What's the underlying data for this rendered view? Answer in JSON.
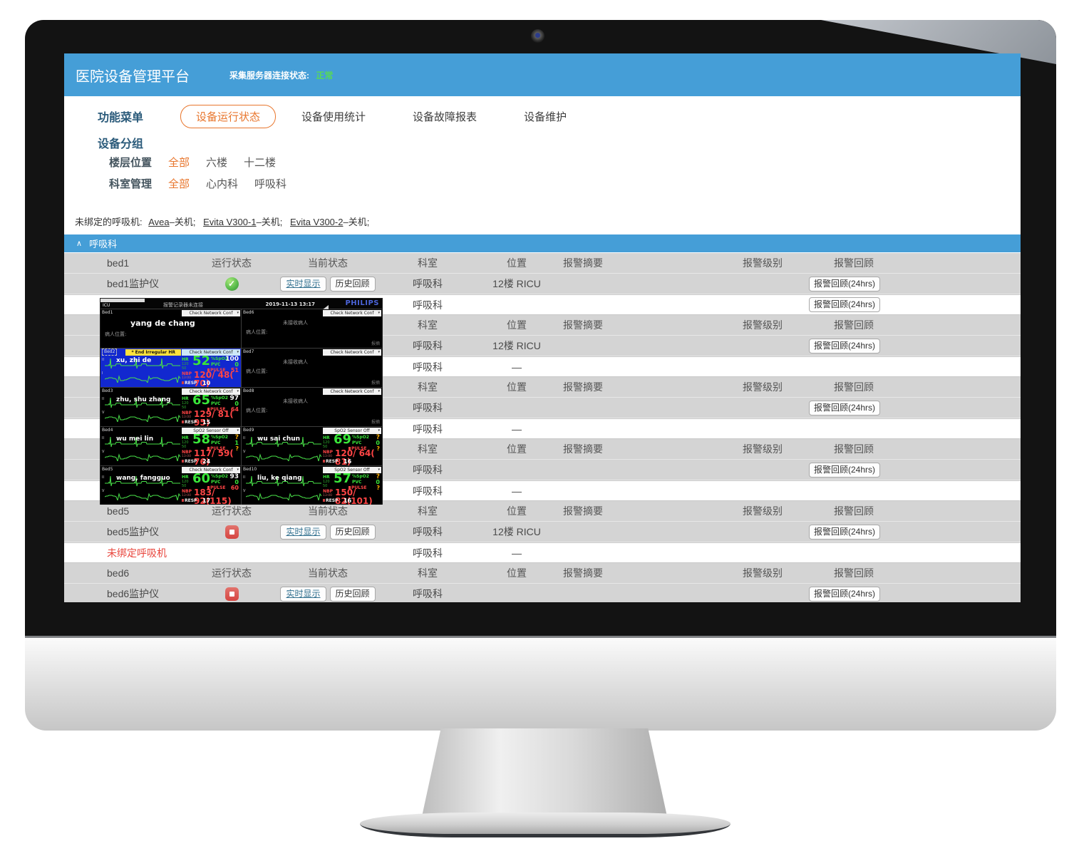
{
  "app": {
    "title": "医院设备管理平台",
    "server_status_label": "采集服务器连接状态:",
    "server_status_value": "正常",
    "nav": {
      "menu_label": "功能菜单",
      "tabs": [
        {
          "label": "设备运行状态",
          "active": true
        },
        {
          "label": "设备使用统计",
          "active": false
        },
        {
          "label": "设备故障报表",
          "active": false
        },
        {
          "label": "设备维护",
          "active": false
        }
      ]
    },
    "filters": {
      "group_title": "设备分组",
      "floor": {
        "label": "楼层位置",
        "options": [
          "全部",
          "六楼",
          "十二楼"
        ],
        "selected": "全部"
      },
      "dept": {
        "label": "科室管理",
        "options": [
          "全部",
          "心内科",
          "呼吸科"
        ],
        "selected": "全部"
      }
    },
    "unbound": {
      "prefix": "未绑定的呼吸机:",
      "items": [
        {
          "name": "Avea",
          "state": "–关机;"
        },
        {
          "name": "Evita V300-1",
          "state": "–关机;"
        },
        {
          "name": "Evita V300-2",
          "state": "–关机;"
        }
      ]
    },
    "section": {
      "caret": "∧",
      "title": "呼吸科"
    },
    "table": {
      "header_cols": {
        "run": "运行状态",
        "current": "当前状态",
        "dept": "科室",
        "loc": "位置",
        "summary": "报警摘要",
        "level": "报警级别",
        "review": "报警回顾"
      },
      "buttons": {
        "realtime": "实时显示",
        "history": "历史回顾",
        "review24": "报警回顾(24hrs)"
      },
      "groups": [
        {
          "bed": "bed1",
          "device": {
            "name": "bed1监护仪",
            "status": "running",
            "dept": "呼吸科",
            "loc": "12楼 RICU",
            "controls": true,
            "review": true
          },
          "third": {
            "name": "",
            "red": false,
            "dept": "呼吸科",
            "loc": "",
            "review": true
          }
        },
        {
          "bed": "",
          "device": {
            "name": "",
            "status": "",
            "dept": "呼吸科",
            "loc": "12楼 RICU",
            "controls": false,
            "review": true
          },
          "third": {
            "name": "",
            "red": false,
            "dept": "呼吸科",
            "loc": "—",
            "review": false
          }
        },
        {
          "bed": "",
          "device": {
            "name": "",
            "status": "",
            "dept": "呼吸科",
            "loc": "",
            "controls": false,
            "review": true
          },
          "third": {
            "name": "",
            "red": false,
            "dept": "呼吸科",
            "loc": "—",
            "review": false
          }
        },
        {
          "bed": "",
          "device": {
            "name": "",
            "status": "",
            "dept": "呼吸科",
            "loc": "",
            "controls": false,
            "review": true
          },
          "third": {
            "name": "",
            "red": false,
            "dept": "呼吸科",
            "loc": "—",
            "review": false
          }
        },
        {
          "bed": "bed5",
          "device": {
            "name": "bed5监护仪",
            "status": "stopped",
            "dept": "呼吸科",
            "loc": "12楼 RICU",
            "controls": true,
            "review": true
          },
          "third": {
            "name": "未绑定呼吸机",
            "red": true,
            "dept": "呼吸科",
            "loc": "—",
            "review": false
          }
        },
        {
          "bed": "bed6",
          "device": {
            "name": "bed6监护仪",
            "status": "stopped",
            "dept": "呼吸科",
            "loc": "",
            "controls": true,
            "review": true
          },
          "third": null
        }
      ]
    }
  },
  "monitor": {
    "topbar": {
      "unit": "ICU",
      "alarm_text": "报警记录器未连接",
      "datetime": "2019-11-13 13:17",
      "brand": "PHILIPS"
    },
    "labels": {
      "hr": "HR",
      "spo2": "%SpO2",
      "pvc": "PVC",
      "pulse": "PULSE",
      "nbp": "NBP",
      "resp": "RESP",
      "hr_high": "120",
      "hr_low": "50",
      "nbp_time": "13:00",
      "no_patient": "未接收病人",
      "location": "病人位置:",
      "corner": "报摘"
    },
    "beds": [
      {
        "id": "Bed1",
        "type": "named",
        "name": "yang de chang",
        "dropdown": "Check Network Conf"
      },
      {
        "id": "Bed6",
        "type": "empty",
        "dropdown": "Check Network Conf"
      },
      {
        "id": "Bed2",
        "type": "vitals",
        "highlight": true,
        "alarm": "* End Irregular HR",
        "name": "xu, zhi de",
        "dropdown": "Check Network Conf",
        "leads": [
          "II",
          "I"
        ],
        "hr": "52",
        "spo2": "100",
        "pvc": "0",
        "pulse": "51",
        "nbp": "120/ 48( 70)",
        "resp": "10"
      },
      {
        "id": "Bed7",
        "type": "empty",
        "dropdown": "Check Network Conf"
      },
      {
        "id": "Bed3",
        "type": "vitals",
        "name": "zhu, shu zhang",
        "dropdown": "Check Network Conf",
        "leads": [
          "II",
          "V"
        ],
        "hr": "65",
        "spo2": "97",
        "pvc": "0",
        "pulse": "64",
        "nbp": "129/ 81( 95)",
        "resp": "15"
      },
      {
        "id": "Bed8",
        "type": "empty",
        "dropdown": "Check Network Conf"
      },
      {
        "id": "Bed4",
        "type": "vitals",
        "name": "wu mei lin",
        "dropdown": "SpO2 Sensor Off",
        "leads": [
          "II",
          "V"
        ],
        "hr": "58",
        "spo2": "?",
        "pvc": "1",
        "pulse": "?",
        "nbp": "117/ 59( 76)",
        "resp": "24"
      },
      {
        "id": "Bed9",
        "type": "vitals",
        "name": "wu sai chun",
        "dropdown": "SpO2 Sensor Off",
        "leads": [
          "II",
          "V"
        ],
        "hr": "69",
        "spo2": "?",
        "pvc": "0",
        "pulse": "?",
        "nbp": "120/ 64( 81)",
        "resp": "16"
      },
      {
        "id": "Bed5",
        "type": "vitals",
        "name": "wang, fangguo",
        "dropdown": "Check Network Conf",
        "leads": [
          "II",
          "V"
        ],
        "hr": "60",
        "spo2": "93",
        "pvc": "0",
        "pulse": "60",
        "nbp": "183/ 92(115)",
        "resp": "17"
      },
      {
        "id": "Bed10",
        "type": "vitals",
        "name": "liu, ke qiang",
        "dropdown": "SpO2 Sensor Off",
        "leads": [
          "II",
          "V"
        ],
        "hr": "57",
        "spo2": "?",
        "pvc": "0",
        "pulse": "?",
        "nbp": "150/ 82(101)",
        "resp": "16"
      }
    ]
  },
  "colors": {
    "header_blue": "#459ED7",
    "accent_orange": "#E8762D",
    "ok_green": "#57D957",
    "row_gray": "#D4D4D4",
    "alert_red": "#E8453C",
    "philips_blue": "#4B64D9",
    "monitor_green": "#39E639",
    "monitor_red": "#FF4545",
    "bed_highlight_blue": "#1228CF",
    "alarm_yellow": "#FFE23C"
  }
}
